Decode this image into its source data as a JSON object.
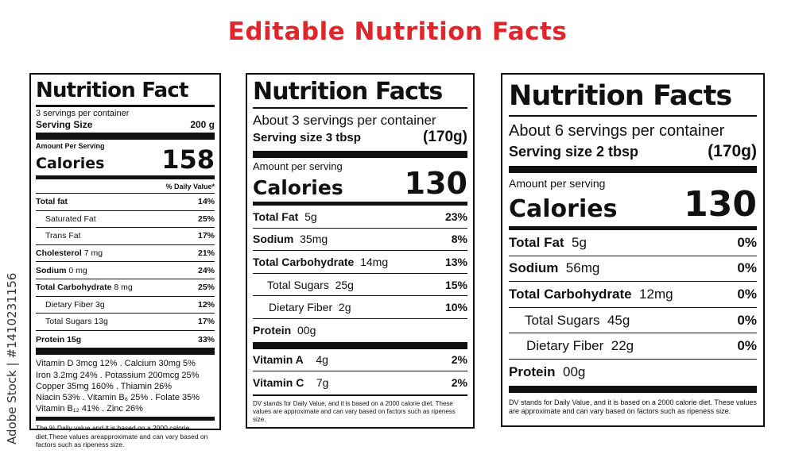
{
  "heading": "Editable Nutrition Facts",
  "watermark": "Adobe Stock | #1410231156",
  "label1": {
    "title": "Nutrition Fact",
    "servings": "3 servings per container",
    "serving_size_label": "Serving Size",
    "serving_size_value": "200 g",
    "amount_per_serving": "Amount Per Serving",
    "calories_label": "Calories",
    "calories_value": "158",
    "dv_header": "% Daily Value*",
    "rows": [
      {
        "name": "Total fat",
        "amount": "",
        "pct": "14%"
      },
      {
        "name": "Saturated Fat",
        "amount": "",
        "pct": "25%"
      },
      {
        "name": "Trans Fat",
        "amount": "",
        "pct": "17%"
      },
      {
        "name": "Cholesterol",
        "amount": "7 mg",
        "pct": "21%"
      },
      {
        "name": "Sodium",
        "amount": "0 mg",
        "pct": "24%"
      },
      {
        "name": "Total Carbohydrate",
        "amount": "8 mg",
        "pct": "25%"
      },
      {
        "name": "Dietary Fiber",
        "amount": "3g",
        "pct": "12%"
      },
      {
        "name": "Total Sugars",
        "amount": "13g",
        "pct": "17%"
      },
      {
        "name": "Protein",
        "amount": "15g",
        "pct": "33%"
      }
    ],
    "vitamins": [
      "Vitamin D 3mcg 12% . Calcium 30mg 5%",
      "Iron 3.2mg 24% . Potassium 200mcg 25%",
      "Copper 35mg 160% . Thiamin 26%",
      "Niacin 53% . Vitamin B₆ 25% . Folate 35%",
      "Vitamin B₁₂ 41% . Zinc 26%"
    ],
    "footnote": "The % Daily value and it is based on a 2000 calorie diet.These values areapproximate and can vary based on factors such as ripeness size."
  },
  "label2": {
    "title": "Nutrition Facts",
    "servings": "About 3 servings per container",
    "serving_size_label": "Serving size  3 tbsp",
    "serving_size_value": "(170g)",
    "amount_per_serving": "Amount per serving",
    "calories_label": "Calories",
    "calories_value": "130",
    "rows": [
      {
        "name": "Total Fat",
        "amount": "5g",
        "pct": "23%"
      },
      {
        "name": "Sodium",
        "amount": "35mg",
        "pct": "8%"
      },
      {
        "name": "Total Carbohydrate",
        "amount": "14mg",
        "pct": "13%"
      },
      {
        "name": "Total Sugars",
        "amount": "25g",
        "pct": "15%"
      },
      {
        "name": "Dietary Fiber",
        "amount": "2g",
        "pct": "10%"
      },
      {
        "name": "Protein",
        "amount": "00g",
        "pct": ""
      }
    ],
    "vitamins": [
      {
        "name": "Vitamin A",
        "amount": "4g",
        "pct": "2%"
      },
      {
        "name": "Vitamin C",
        "amount": "7g",
        "pct": "2%"
      }
    ],
    "footnote": "DV stands for Daily Value, and it is based on a 2000 calorie diet. These values are approximate and can vary based on factors such as ripeness size."
  },
  "label3": {
    "title": "Nutrition Facts",
    "servings": "About 6 servings per container",
    "serving_size_label": "Serving size  2 tbsp",
    "serving_size_value": "(170g)",
    "amount_per_serving": "Amount per serving",
    "calories_label": "Calories",
    "calories_value": "130",
    "rows": [
      {
        "name": "Total Fat",
        "amount": "5g",
        "pct": "0%"
      },
      {
        "name": "Sodium",
        "amount": "56mg",
        "pct": "0%"
      },
      {
        "name": "Total Carbohydrate",
        "amount": "12mg",
        "pct": "0%"
      },
      {
        "name": "Total Sugars",
        "amount": "45g",
        "pct": "0%"
      },
      {
        "name": "Dietary Fiber",
        "amount": "22g",
        "pct": "0%"
      },
      {
        "name": "Protein",
        "amount": "00g",
        "pct": ""
      }
    ],
    "footnote": "DV stands for Daily Value, and it is based on a 2000 calorie diet. These values are approximate and can vary based on factors such as ripeness size."
  }
}
